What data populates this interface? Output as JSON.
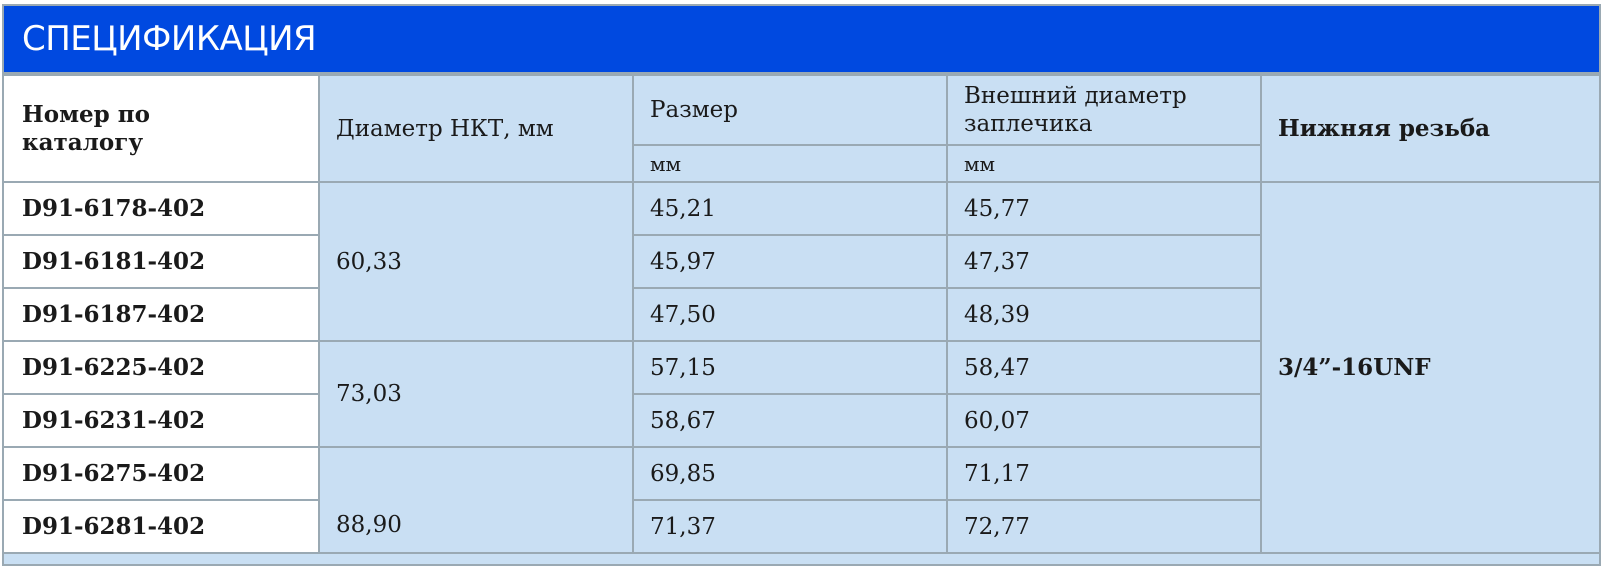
{
  "title": "СПЕЦИФИКАЦИЯ",
  "headers": {
    "catalog": "Номер по каталогу",
    "tubing_diameter": "Диаметр НКТ, мм",
    "size": "Размер",
    "size_unit": "мм",
    "shoulder_od": "Внешний диаметр заплечика",
    "shoulder_unit": "мм",
    "bottom_thread": "Нижняя резьба"
  },
  "tubing_groups": [
    "60,33",
    "73,03",
    "88,90"
  ],
  "bottom_thread_value": "3/4”-16UNF",
  "rows": [
    {
      "catalog": "D91-6178-402",
      "size": "45,21",
      "shoulder_od": "45,77"
    },
    {
      "catalog": "D91-6181-402",
      "size": "45,97",
      "shoulder_od": "47,37"
    },
    {
      "catalog": "D91-6187-402",
      "size": "47,50",
      "shoulder_od": "48,39"
    },
    {
      "catalog": "D91-6225-402",
      "size": "57,15",
      "shoulder_od": "58,47"
    },
    {
      "catalog": "D91-6231-402",
      "size": "58,67",
      "shoulder_od": "60,07"
    },
    {
      "catalog": "D91-6275-402",
      "size": "69,85",
      "shoulder_od": "71,17"
    },
    {
      "catalog": "D91-6281-402",
      "size": "71,37",
      "shoulder_od": "72,77"
    }
  ],
  "colors": {
    "title_bar": "#0049e0",
    "cell_bg": "#c9dff3",
    "catalog_bg": "#ffffff",
    "border": "#9aa9b3"
  }
}
